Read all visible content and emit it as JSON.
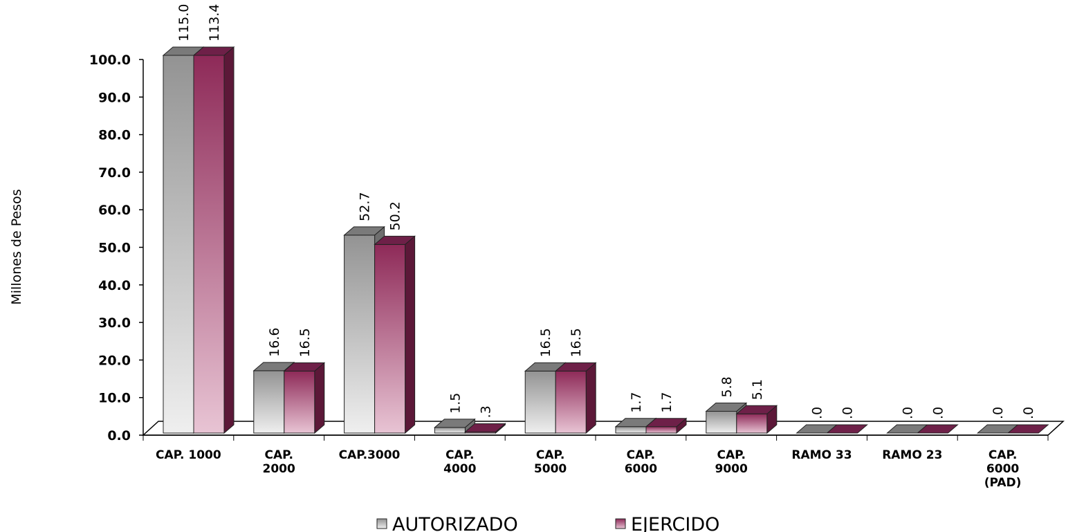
{
  "chart_data": {
    "type": "bar3d",
    "y_axis_label": "Millones de Pesos",
    "categories": [
      "CAP. 1000",
      "CAP.\n2000",
      "CAP.3000",
      "CAP.\n4000",
      "CAP.\n5000",
      "CAP.\n6000",
      "CAP.\n9000",
      "RAMO 33",
      "RAMO 23",
      "CAP.\n6000\n(PAD)"
    ],
    "series": [
      {
        "name": "AUTORIZADO",
        "color": "#9a9a9a",
        "values": [
          115.0,
          16.6,
          52.7,
          1.5,
          16.5,
          1.7,
          5.8,
          0,
          0,
          0
        ],
        "value_labels": [
          "115.0",
          "16.6",
          "52.7",
          "1.5",
          "16.5",
          "1.7",
          "5.8",
          ".0",
          ".0",
          ".0"
        ]
      },
      {
        "name": "EJERCIDO",
        "color": "#8e2a58",
        "values": [
          113.4,
          16.5,
          50.2,
          0.3,
          16.5,
          1.7,
          5.1,
          0,
          0,
          0
        ],
        "value_labels": [
          "113.4",
          "16.5",
          "50.2",
          ".3",
          "16.5",
          "1.7",
          "5.1",
          ".0",
          ".0",
          ".0"
        ]
      }
    ],
    "ylim": [
      0,
      100
    ],
    "yticks": [
      {
        "value": 0,
        "label": "0.0"
      },
      {
        "value": 10,
        "label": "10.0"
      },
      {
        "value": 20,
        "label": "20.0"
      },
      {
        "value": 30,
        "label": "30.0"
      },
      {
        "value": 40,
        "label": "40.0"
      },
      {
        "value": 50,
        "label": "50.0"
      },
      {
        "value": 60,
        "label": "60.0"
      },
      {
        "value": 70,
        "label": "70.0"
      },
      {
        "value": 80,
        "label": "80.0"
      },
      {
        "value": 90,
        "label": "90.0"
      },
      {
        "value": 100,
        "label": "100.0"
      }
    ],
    "legend": "bottom"
  }
}
